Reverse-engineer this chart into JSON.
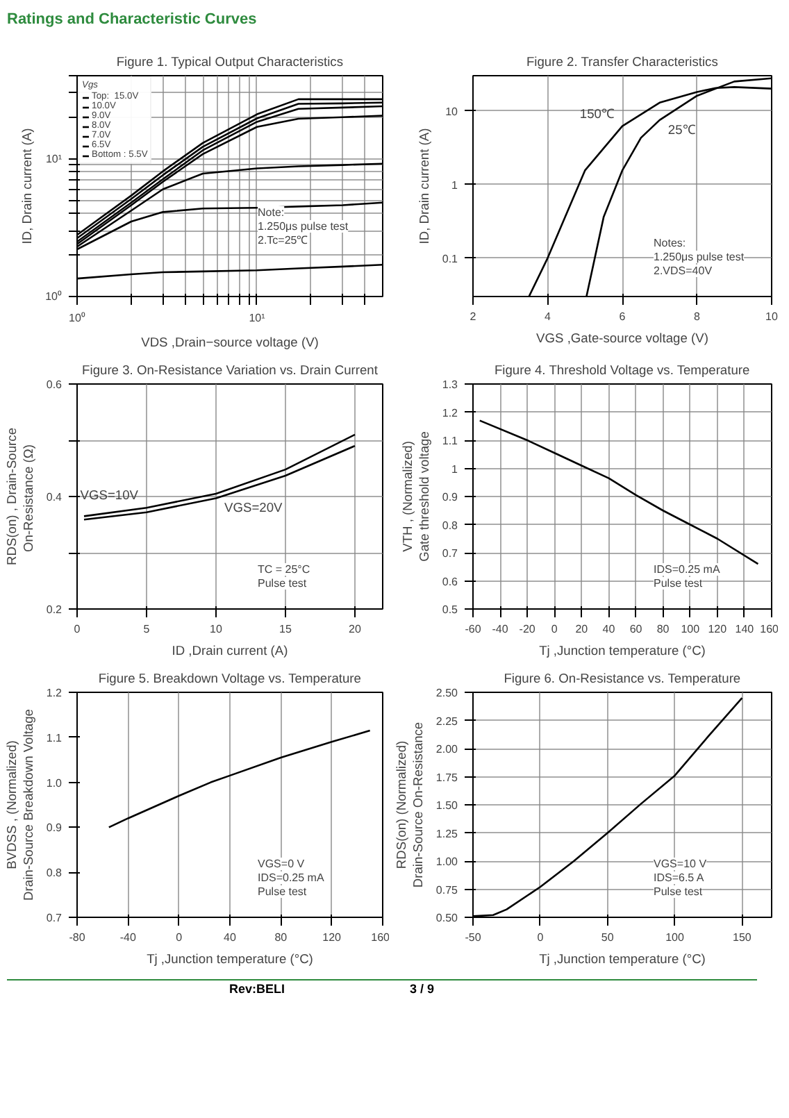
{
  "chart_data": [
    {
      "type": "other",
      "title": "Ratings and Characteristic Curves",
      "annotations": [
        "Rev:BELI",
        "3 / 9"
      ]
    },
    {
      "type": "line",
      "title": "Figure 1. Typical Output Characteristics",
      "xlabel": "VDS ,Drain−source voltage (V)",
      "ylabel": "ID, Drain current (A)",
      "log": "xy",
      "grid": true,
      "legend": "top left",
      "legend_title": "Vgs",
      "x": [
        1,
        2,
        3,
        5,
        10,
        17,
        30,
        50
      ],
      "series": [
        {
          "name": "Top:  15.0V",
          "color": "#000000",
          "values": [
            2.8,
            5.4,
            8.1,
            13,
            21,
            27,
            27,
            27
          ]
        },
        {
          "name": "10.0V",
          "color": "#000000",
          "values": [
            2.65,
            5.1,
            7.6,
            12.2,
            19.6,
            25,
            25.2,
            25.5
          ]
        },
        {
          "name": "9.0V",
          "color": "#000000",
          "values": [
            2.5,
            4.8,
            7.1,
            11.5,
            18.5,
            23,
            23.5,
            24
          ]
        },
        {
          "name": "8.0V",
          "color": "#000000",
          "values": [
            2.4,
            4.6,
            6.8,
            10.8,
            17,
            19.5,
            20,
            20.5
          ]
        },
        {
          "name": "7.0V",
          "color": "#000000",
          "values": [
            2.3,
            4.2,
            6.0,
            7.8,
            8.5,
            8.8,
            9,
            9.2
          ]
        },
        {
          "name": "6.5V",
          "color": "#000000",
          "values": [
            2.2,
            3.5,
            4.1,
            4.35,
            4.4,
            4.5,
            4.6,
            4.8
          ]
        },
        {
          "name": "Bottom : 5.5V",
          "color": "#000000",
          "values": [
            1.35,
            1.45,
            1.5,
            1.52,
            1.55,
            1.6,
            1.65,
            1.7
          ]
        }
      ],
      "xlim": [
        1,
        50
      ],
      "ylim": [
        1,
        40
      ],
      "xticks": [
        {
          "value": 1,
          "label": "10⁰"
        },
        {
          "value": 2,
          "label": null
        },
        {
          "value": 3,
          "label": null
        },
        {
          "value": 4,
          "label": null
        },
        {
          "value": 5,
          "label": null
        },
        {
          "value": 6,
          "label": null
        },
        {
          "value": 7,
          "label": null
        },
        {
          "value": 8,
          "label": null
        },
        {
          "value": 9,
          "label": null
        },
        {
          "value": 10,
          "label": "10¹"
        },
        {
          "value": 20,
          "label": null
        },
        {
          "value": 30,
          "label": null
        },
        {
          "value": 40,
          "label": null
        }
      ],
      "yticks": [
        {
          "value": 1,
          "label": "10⁰"
        },
        {
          "value": 2,
          "label": null
        },
        {
          "value": 3,
          "label": null
        },
        {
          "value": 4,
          "label": null
        },
        {
          "value": 5,
          "label": null
        },
        {
          "value": 6,
          "label": null
        },
        {
          "value": 7,
          "label": null
        },
        {
          "value": 8,
          "label": null
        },
        {
          "value": 9,
          "label": null
        },
        {
          "value": 10,
          "label": "10¹"
        },
        {
          "value": 20,
          "label": null
        },
        {
          "value": 30,
          "label": null
        },
        {
          "value": 40,
          "label": null
        }
      ],
      "annotations": [
        "Note:",
        "1.250μs pulse test",
        "2.Tc=25℃"
      ]
    },
    {
      "type": "line",
      "title": "Figure 2. Transfer Characteristics",
      "xlabel": "VGS ,Gate-source voltage (V)",
      "ylabel": "ID, Drain current (A)",
      "log": "y",
      "grid": true,
      "series": [
        {
          "name": "150℃",
          "color": "#000000",
          "x": [
            3.5,
            4,
            5,
            6,
            7,
            8,
            8.5,
            9,
            10
          ],
          "values": [
            0.03,
            0.1,
            1.55,
            6.2,
            12.9,
            18,
            20.4,
            21,
            20
          ]
        },
        {
          "name": "25℃",
          "color": "#000000",
          "x": [
            5.04,
            5.5,
            6,
            6.5,
            7,
            8,
            9,
            10
          ],
          "values": [
            0.03,
            0.36,
            1.55,
            4.3,
            7.5,
            16,
            25,
            27.7
          ]
        }
      ],
      "xlim": [
        2,
        10
      ],
      "ylim": [
        0.03,
        30
      ],
      "xticks": [
        2,
        4,
        6,
        8,
        10
      ],
      "yticks": [
        0.1,
        1,
        10
      ],
      "annotations": [
        "Notes:",
        "1.250μs pulse test",
        "2.VDS=40V"
      ]
    },
    {
      "type": "line",
      "title": "Figure 3. On-Resistance Variation vs. Drain Current",
      "xlabel": "ID ,Drain current (A)",
      "ylabel": "RDS(on) , Drain-Source\nOn-Resistance  (Ω)",
      "grid": true,
      "x": [
        0.5,
        5,
        10,
        15,
        20
      ],
      "series": [
        {
          "name": "VGS=10V",
          "color": "#000000",
          "values": [
            0.365,
            0.38,
            0.405,
            0.448,
            0.51
          ]
        },
        {
          "name": "VGS=20V",
          "color": "#000000",
          "values": [
            0.359,
            0.372,
            0.397,
            0.437,
            0.49
          ]
        }
      ],
      "xlim": [
        0,
        22
      ],
      "ylim": [
        0.2,
        0.6
      ],
      "xticks": [
        0,
        5,
        10,
        15,
        20
      ],
      "yticks": [
        0.2,
        {
          "value": 0.3,
          "label": null
        },
        0.4,
        {
          "value": 0.5,
          "label": null
        },
        0.6
      ],
      "annotations": [
        "TC = 25°C",
        "Pulse test"
      ]
    },
    {
      "type": "line",
      "title": "Figure 4. Threshold Voltage vs. Temperature",
      "xlabel": "Tj ,Junction temperature (°C)",
      "ylabel": "VTH , (Normalized)\nGate threshold voltage",
      "grid": true,
      "x": [
        -55,
        -20,
        0,
        20,
        40,
        60,
        80,
        100,
        120,
        150
      ],
      "values": [
        1.17,
        1.1,
        1.055,
        1.01,
        0.965,
        0.905,
        0.85,
        0.8,
        0.75,
        0.66
      ],
      "color": "#000000",
      "xlim": [
        -60,
        160
      ],
      "ylim": [
        0.5,
        1.3
      ],
      "xticks": [
        -60,
        -40,
        -20,
        0,
        20,
        40,
        60,
        80,
        100,
        120,
        140,
        160
      ],
      "yticks": [
        0.5,
        0.6,
        0.7,
        0.8,
        0.9,
        1,
        1.1,
        1.2,
        1.3
      ],
      "annotations": [
        "IDS=0.25 mA",
        "Pulse test"
      ]
    },
    {
      "type": "line",
      "title": "Figure 5. Breakdown Voltage vs. Temperature",
      "xlabel": "Tj ,Junction temperature (°C)",
      "ylabel": "BVDSS , (Normalized)\nDrain-Source Breakdown Voltage",
      "grid": "x",
      "x": [
        -55,
        -40,
        0,
        25,
        40,
        80,
        120,
        150
      ],
      "values": [
        0.9,
        0.92,
        0.97,
        1.0,
        1.015,
        1.055,
        1.09,
        1.115
      ],
      "color": "#000000",
      "xlim": [
        -80,
        160
      ],
      "ylim": [
        0.7,
        1.2
      ],
      "xticks": [
        -80,
        -40,
        0,
        40,
        80,
        120,
        160
      ],
      "yticks": [
        0.7,
        0.8,
        0.9,
        {
          "value": 1.0,
          "label": "1.0"
        },
        1.1,
        1.2
      ],
      "annotations": [
        "VGS=0 V",
        "IDS=0.25 mA",
        "Pulse test"
      ]
    },
    {
      "type": "line",
      "title": "Figure 6. On-Resistance vs. Temperature",
      "xlabel": "Tj ,Junction temperature (°C)",
      "ylabel": "RDS(on) (Normalized)\nDrain-Source On-Resistance",
      "grid": true,
      "x": [
        -50,
        -35,
        -25,
        0,
        25,
        50,
        75,
        100,
        125,
        150
      ],
      "values": [
        0.51,
        0.52,
        0.57,
        0.77,
        1.0,
        1.25,
        1.51,
        1.76,
        2.11,
        2.45
      ],
      "color": "#000000",
      "xlim": [
        -50,
        172
      ],
      "ylim": [
        0.5,
        2.5
      ],
      "xticks": [
        -50,
        0,
        50,
        100,
        150
      ],
      "yticks": [
        {
          "value": 0.5,
          "label": "0.50"
        },
        0.75,
        {
          "value": 1.0,
          "label": "1.00"
        },
        1.25,
        {
          "value": 1.5,
          "label": "1.50"
        },
        1.75,
        {
          "value": 2.0,
          "label": "2.00"
        },
        2.25,
        {
          "value": 2.5,
          "label": "2.50"
        }
      ],
      "annotations": [
        "VGS=10 V",
        "IDS=6.5 A",
        "Pulse test"
      ]
    }
  ]
}
